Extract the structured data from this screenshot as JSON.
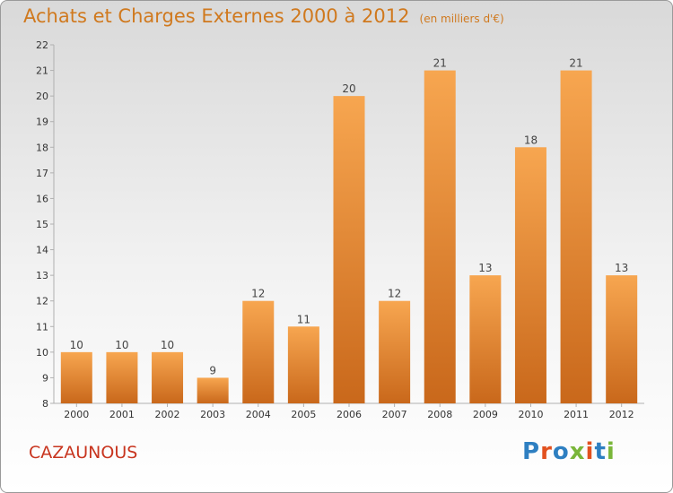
{
  "title": "Achats et Charges Externes 2000 à 2012",
  "unit": "(en milliers d'€)",
  "commune": "CAZAUNOUS",
  "logo": {
    "text": "Proxiti",
    "colors": [
      "#2e7fc1",
      "#e2511f",
      "#2e7fc1",
      "#7ab63a",
      "#e2511f",
      "#2e7fc1",
      "#7ab63a"
    ]
  },
  "colors": {
    "bar_light": "#f7a650",
    "bar_dark": "#c9681b",
    "title": "#d0791e",
    "commune": "#c8351f",
    "axis": "#b0b0b0"
  },
  "chart_data": {
    "type": "bar",
    "categories": [
      "2000",
      "2001",
      "2002",
      "2003",
      "2004",
      "2005",
      "2006",
      "2007",
      "2008",
      "2009",
      "2010",
      "2011",
      "2012"
    ],
    "values": [
      10,
      10,
      10,
      9,
      12,
      11,
      20,
      12,
      21,
      13,
      18,
      21,
      13
    ],
    "ylim": [
      8,
      22
    ],
    "yticks": [
      8,
      9,
      10,
      11,
      12,
      13,
      14,
      15,
      16,
      17,
      18,
      19,
      20,
      21,
      22
    ],
    "grid": false,
    "data_labels": true
  }
}
